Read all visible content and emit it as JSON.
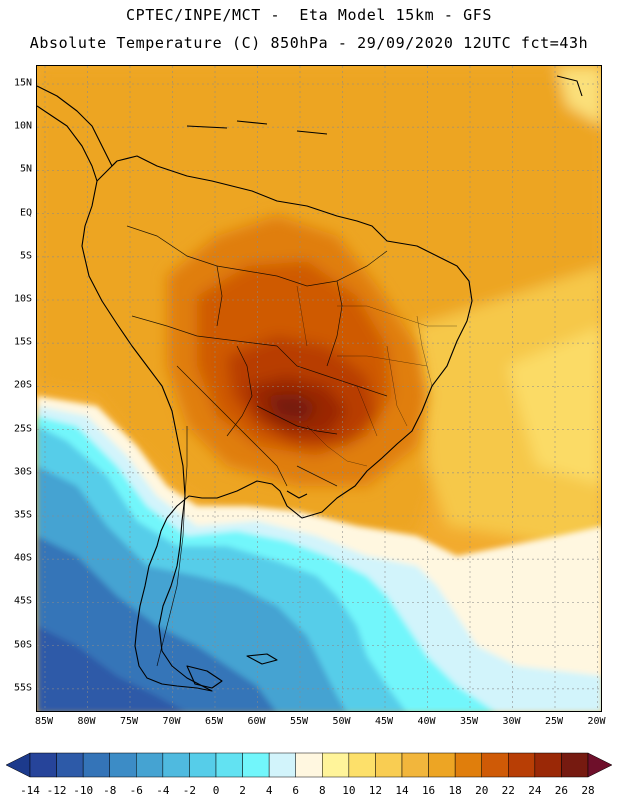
{
  "header": {
    "line1": "CPTEC/INPE/MCT -  Eta Model 15km - GFS",
    "line2": "Absolute Temperature (C) 850hPa - 29/09/2020 12UTC fct=43h"
  },
  "latitude_labels": [
    "15N",
    "10N",
    "5N",
    "EQ",
    "5S",
    "10S",
    "15S",
    "20S",
    "25S",
    "30S",
    "35S",
    "40S",
    "45S",
    "50S",
    "55S"
  ],
  "longitude_labels": [
    "85W",
    "80W",
    "75W",
    "70W",
    "65W",
    "60W",
    "55W",
    "50W",
    "45W",
    "40W",
    "35W",
    "30W",
    "25W",
    "20W"
  ],
  "colorbar": {
    "labels": [
      "-14",
      "-12",
      "-10",
      "-8",
      "-6",
      "-4",
      "-2",
      "0",
      "2",
      "4",
      "6",
      "8",
      "10",
      "12",
      "14",
      "16",
      "18",
      "20",
      "22",
      "24",
      "26",
      "28"
    ],
    "under_color": "#1c3a8c",
    "over_color": "#6e0f2a",
    "colors": [
      "#26449a",
      "#2d5aa8",
      "#3474b8",
      "#3c8cc6",
      "#45a3d2",
      "#4fbadf",
      "#56cde9",
      "#62e2f2",
      "#72f6fb",
      "#d2f4fb",
      "#fff7e0",
      "#fff49a",
      "#fde06a",
      "#f9cd52",
      "#f2b63c",
      "#eda524",
      "#e07e0c",
      "#cf5a06",
      "#b83e05",
      "#9a2806",
      "#761a10"
    ]
  },
  "map": {
    "background_color": "#f2ab2e",
    "legend_units": "C"
  }
}
